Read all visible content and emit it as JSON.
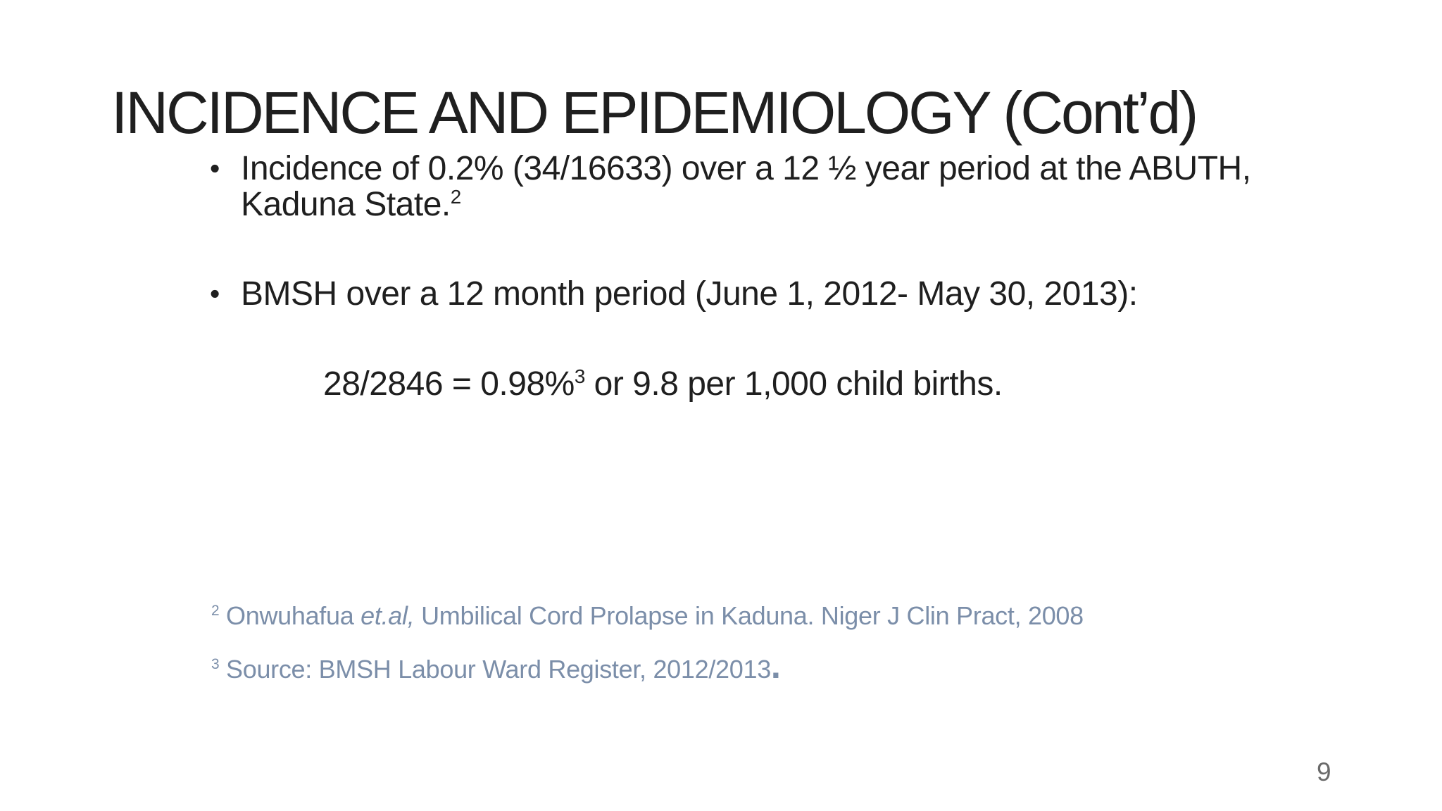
{
  "slide": {
    "title": "INCIDENCE AND EPIDEMIOLOGY (Cont’d)",
    "bullet_glyph": "•",
    "bullet1": {
      "line1": "Incidence of 0.2% (34/16633) over a 12 ½ year period at the ABUTH,",
      "line2": "Kaduna State.",
      "line2_superscript": "2"
    },
    "bullet2": {
      "text": "BMSH over a 12 month period (June 1, 2012- May 30, 2013):"
    },
    "statistic": {
      "lead": "28/2846 = 0.98%",
      "superscript": "3",
      "tail": "or 9.8 per 1,000 child births."
    },
    "footnote2": {
      "superscript": "2",
      "name_text": "Onwuhafua",
      "italic_text": "et.al,",
      "rest_text": "Umbilical Cord Prolapse in Kaduna. Niger J Clin Pract, 2008"
    },
    "footnote3": {
      "superscript": "3",
      "text": "Source: BMSH Labour Ward Register, 2012/2013",
      "trailing_period": "."
    },
    "page_number": "9"
  },
  "colors": {
    "text": "#1f1f1f",
    "footnote": "#7b8ea9",
    "page_number": "#6a6a6a",
    "background": "#ffffff"
  }
}
